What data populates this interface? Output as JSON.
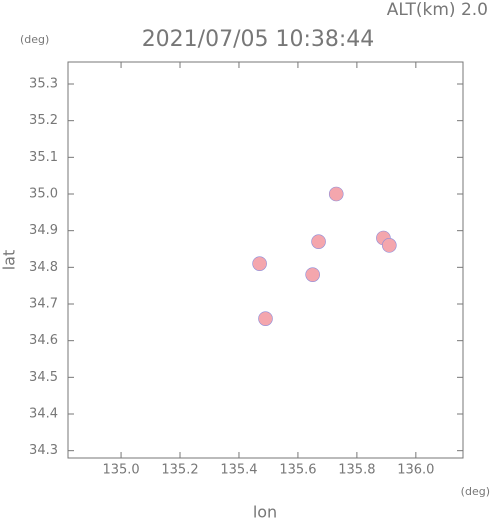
{
  "chart_data": {
    "type": "scatter",
    "title": "2021/07/05 10:38:44",
    "annotation": "ALT(km)  2.0",
    "y_unit": "(deg)",
    "x_unit": "(deg)",
    "x_label": "lon",
    "y_label": "lat",
    "x": [
      135.73,
      135.67,
      135.65,
      135.89,
      135.91,
      135.47,
      135.49
    ],
    "values": [
      35.0,
      34.87,
      34.78,
      34.88,
      34.86,
      34.81,
      34.66
    ],
    "color": "#f4a6ad",
    "xlim": [
      134.82,
      136.16
    ],
    "ylim": [
      34.28,
      35.36
    ],
    "xticks": [
      {
        "value": 135,
        "label": "135.0"
      },
      135.2,
      135.4,
      135.6,
      135.8,
      {
        "value": 136,
        "label": "136.0"
      }
    ],
    "yticks": [
      34.3,
      34.4,
      34.5,
      34.6,
      34.7,
      34.8,
      34.9,
      {
        "value": 35,
        "label": "35.0"
      },
      35.1,
      35.2,
      35.3
    ],
    "grid": false
  }
}
